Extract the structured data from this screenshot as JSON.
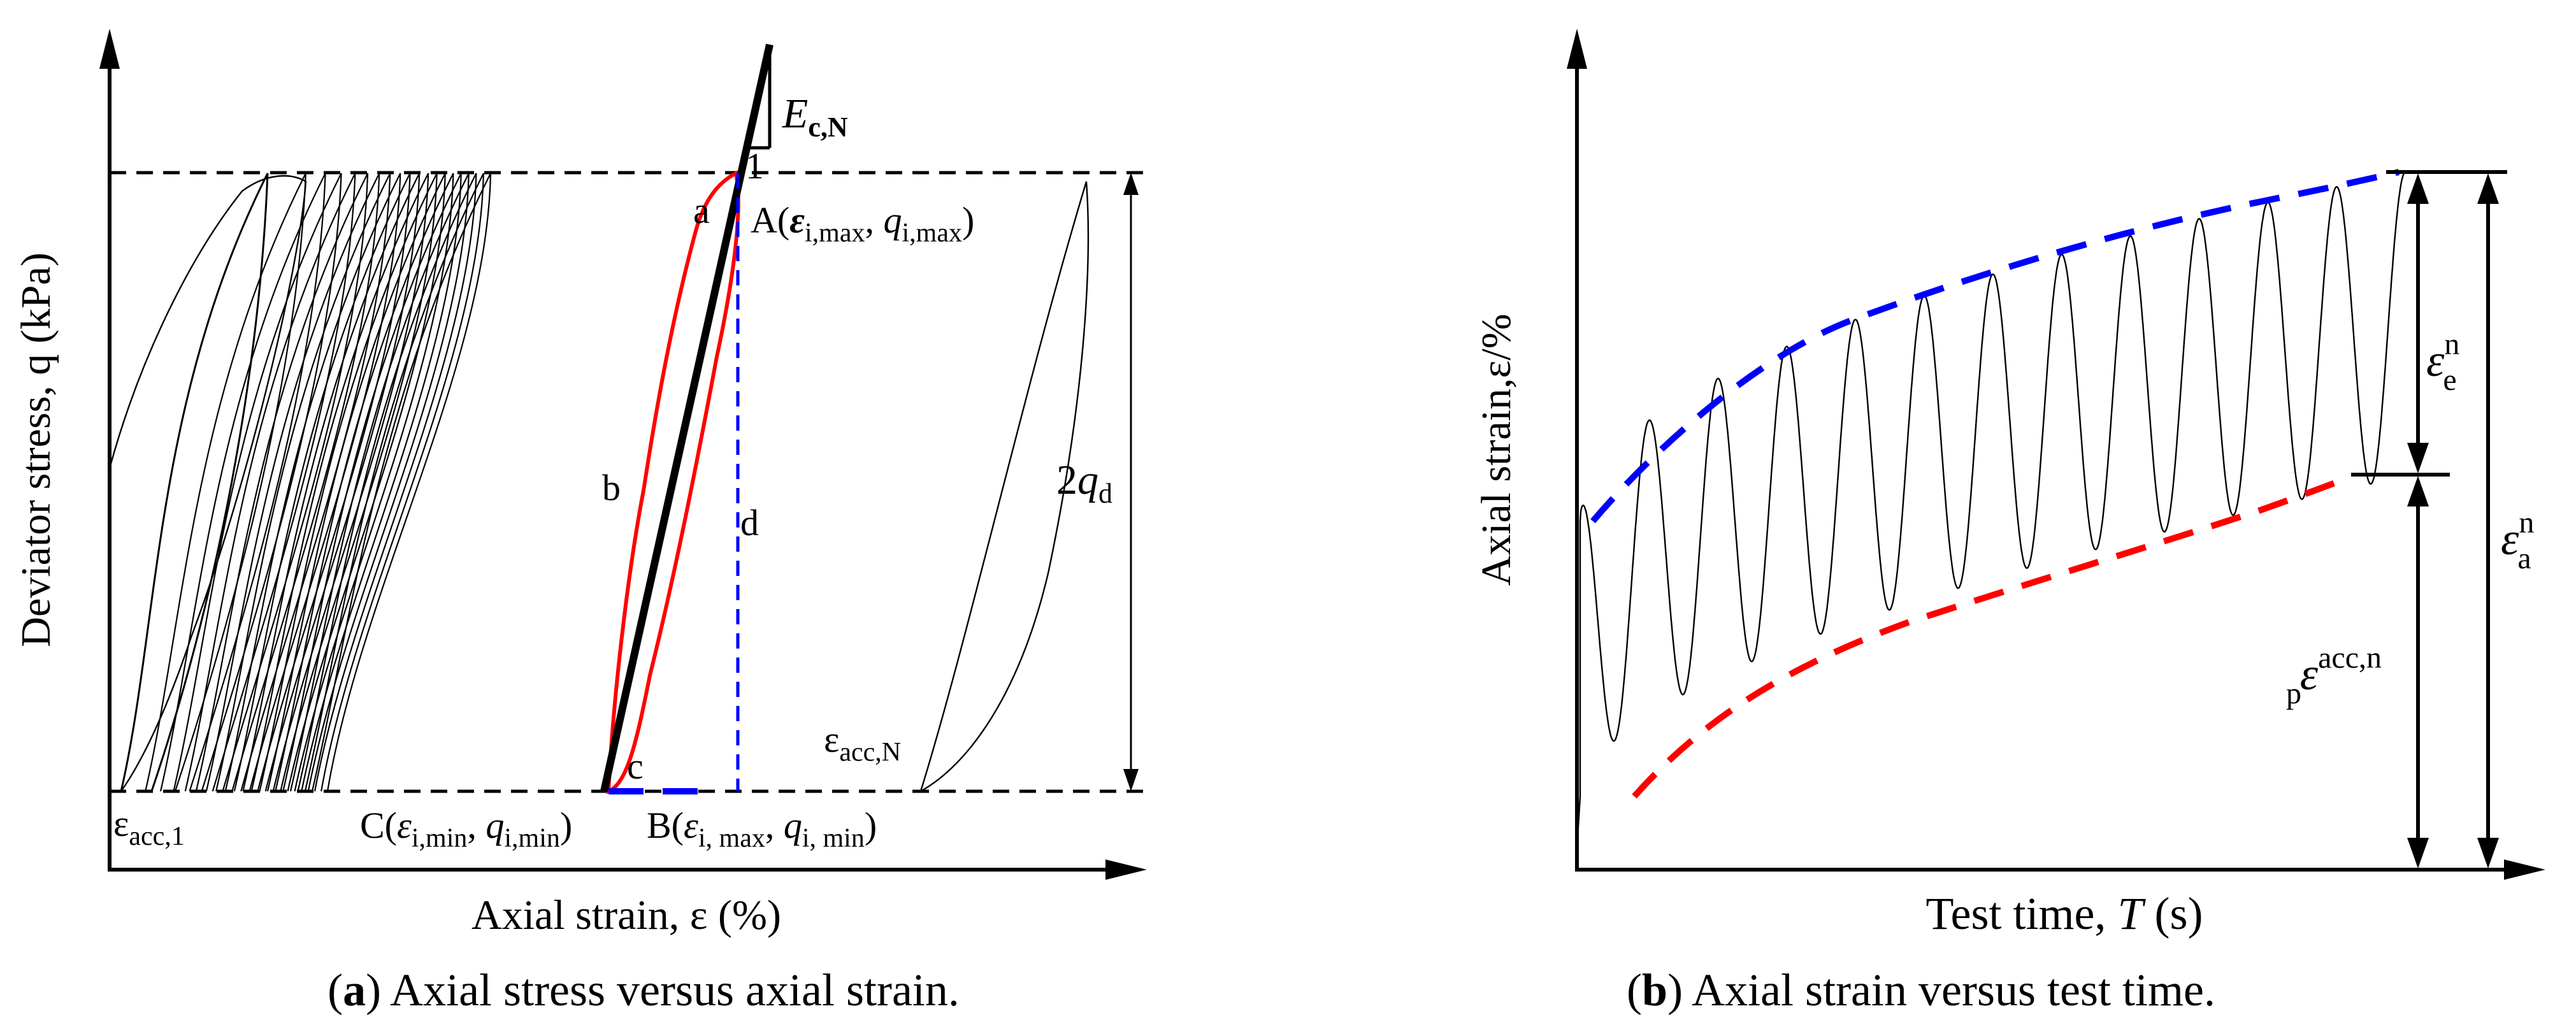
{
  "colors": {
    "blue": "#0000ff",
    "red": "#ff0000",
    "black": "#000000"
  },
  "panel_a": {
    "caption_letter": "a",
    "caption_text": " Axial stress versus axial strain.",
    "ylabel": "Deviator stress, q (kPa)",
    "xlabel": "Axial strain, ε (%)",
    "label_E": "E",
    "label_E_sub": "c,N",
    "label_1": "1",
    "label_a": "a",
    "label_b": "b",
    "label_c": "c",
    "label_d": "d",
    "label_2": "2",
    "label_q": "q",
    "label_d_sub": "d",
    "point_A_prefix": "A(",
    "point_A_eps": "ε",
    "point_A_eps_sub": "i,max",
    "point_A_sep": ", ",
    "point_A_q": "q",
    "point_A_q_sub": "i,max",
    "point_A_suffix": ")",
    "point_B_prefix": "B(",
    "point_B_eps": "ε",
    "point_B_eps_sub": "i, max",
    "point_B_sep": ", ",
    "point_B_q": "q",
    "point_B_q_sub": "i, min",
    "point_B_suffix": ")",
    "point_C_prefix": "C(",
    "point_C_eps": "ε",
    "point_C_eps_sub": "i,min",
    "point_C_sep": ", ",
    "point_C_q": "q",
    "point_C_q_sub": "i,min",
    "point_C_suffix": ")",
    "eps_acc1": "ε",
    "eps_acc1_sub": "acc,1",
    "eps_accN": "ε",
    "eps_accN_sub": "acc,N"
  },
  "panel_b": {
    "caption_letter": "b",
    "caption_text": " Axial strain versus test time.",
    "ylabel": "Axial strain,ε/%",
    "xlabel_prefix": "Test time, ",
    "xlabel_T": "T",
    "xlabel_suffix": " (s)",
    "label_e": "ε",
    "label_e_sup": "n",
    "label_e_sub": "e",
    "label_a": "ε",
    "label_a_sup": "n",
    "label_a_sub": "a",
    "label_p": "ε",
    "label_p_sup": "acc,n",
    "label_p_sub": "p"
  },
  "cap_open": "(",
  "cap_close": ")"
}
